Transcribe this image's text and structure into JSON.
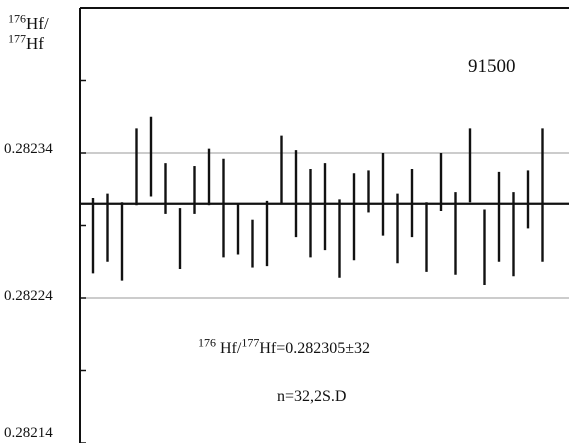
{
  "chart_data": {
    "type": "error-bar",
    "sample_label": "91500",
    "ylabel": {
      "sup1": "176",
      "part1": "Hf/",
      "sup2": "177",
      "part2": "Hf"
    },
    "y_ticks": [
      "0.28234",
      "0.28224",
      "0.28214"
    ],
    "ylim": [
      0.28214,
      0.28244
    ],
    "grid": "horizontal lines at labeled ticks",
    "mean": 0.282305,
    "annotation": {
      "sup1": "176",
      "part1": " Hf/",
      "sup2": "177",
      "part2": "Hf=0.282305±32"
    },
    "n_label": "n=32,2S.D",
    "points": [
      {
        "lo": 0.282257,
        "hi": 0.282309
      },
      {
        "lo": 0.282265,
        "hi": 0.282312
      },
      {
        "lo": 0.282252,
        "hi": 0.282306
      },
      {
        "lo": 0.282304,
        "hi": 0.282357
      },
      {
        "lo": 0.28231,
        "hi": 0.282365
      },
      {
        "lo": 0.282298,
        "hi": 0.282333
      },
      {
        "lo": 0.28226,
        "hi": 0.282302
      },
      {
        "lo": 0.282298,
        "hi": 0.282331
      },
      {
        "lo": 0.282304,
        "hi": 0.282343
      },
      {
        "lo": 0.282268,
        "hi": 0.282336
      },
      {
        "lo": 0.28227,
        "hi": 0.282305
      },
      {
        "lo": 0.282261,
        "hi": 0.282294
      },
      {
        "lo": 0.282262,
        "hi": 0.282307
      },
      {
        "lo": 0.282305,
        "hi": 0.282352
      },
      {
        "lo": 0.282282,
        "hi": 0.282342
      },
      {
        "lo": 0.282268,
        "hi": 0.282329
      },
      {
        "lo": 0.282273,
        "hi": 0.282333
      },
      {
        "lo": 0.282254,
        "hi": 0.282308
      },
      {
        "lo": 0.282266,
        "hi": 0.282326
      },
      {
        "lo": 0.282299,
        "hi": 0.282328
      },
      {
        "lo": 0.282283,
        "hi": 0.28234
      },
      {
        "lo": 0.282264,
        "hi": 0.282312
      },
      {
        "lo": 0.282282,
        "hi": 0.282329
      },
      {
        "lo": 0.282258,
        "hi": 0.282306
      },
      {
        "lo": 0.2823,
        "hi": 0.28234
      },
      {
        "lo": 0.282256,
        "hi": 0.282313
      },
      {
        "lo": 0.282306,
        "hi": 0.282357
      },
      {
        "lo": 0.282249,
        "hi": 0.282301
      },
      {
        "lo": 0.282265,
        "hi": 0.282327
      },
      {
        "lo": 0.282255,
        "hi": 0.282313
      },
      {
        "lo": 0.282288,
        "hi": 0.282328
      },
      {
        "lo": 0.282265,
        "hi": 0.282357
      }
    ]
  }
}
